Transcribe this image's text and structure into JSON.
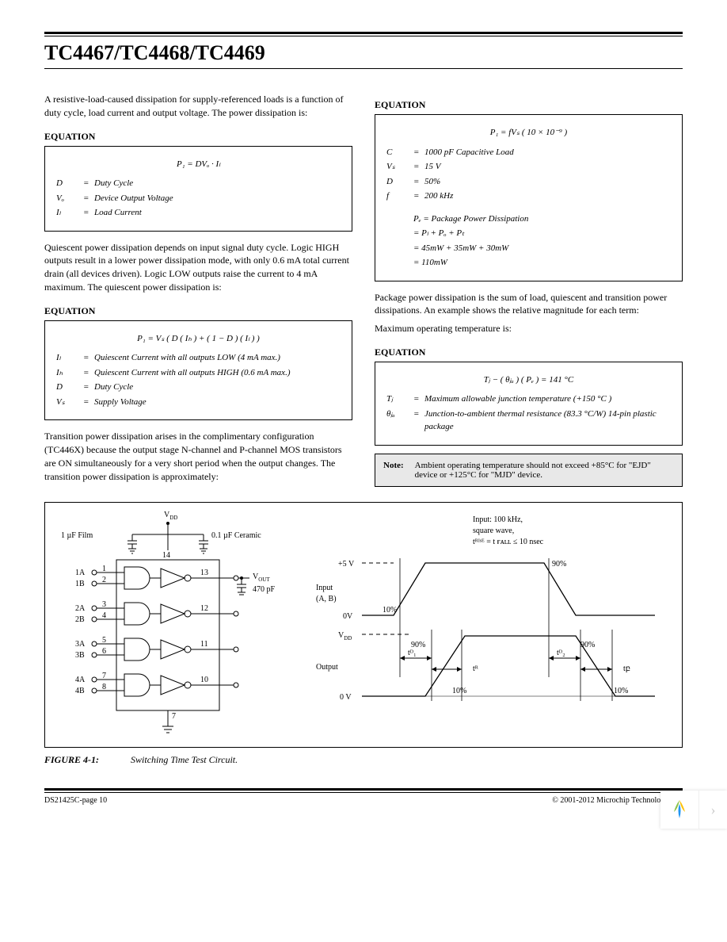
{
  "header": {
    "title": "TC4467/TC4468/TC4469"
  },
  "left": {
    "intro": "A resistive-load-caused dissipation for supply-referenced loads is a function of duty cycle, load current and output voltage. The power dissipation is:",
    "eq1": {
      "label": "EQUATION",
      "formula": "P₁  =  DVₒ · Iₗ",
      "defs": [
        {
          "sym": "D",
          "desc": "Duty Cycle"
        },
        {
          "sym": "Vₒ",
          "desc": "Device Output Voltage"
        },
        {
          "sym": "Iₗ",
          "desc": "Load Current"
        }
      ]
    },
    "para2": "Quiescent power dissipation depends on input signal duty cycle. Logic HIGH outputs result in a lower power dissipation mode, with only 0.6 mA total current drain (all devices driven). Logic LOW outputs raise the current to 4 mA maximum. The quiescent power dissipation is:",
    "eq2": {
      "label": "EQUATION",
      "formula": "P₁  =  Vₛ ( D ( Iₕ ) + ( 1 − D ) ( Iₗ ) )",
      "defs": [
        {
          "sym": "Iₗ",
          "desc": "Quiescent Current with all outputs LOW (4 mA max.)"
        },
        {
          "sym": "Iₕ",
          "desc": "Quiescent Current with all outputs HIGH (0.6 mA max.)"
        },
        {
          "sym": "D",
          "desc": "Duty Cycle"
        },
        {
          "sym": "Vₛ",
          "desc": "Supply Voltage"
        }
      ]
    },
    "para3": "Transition power dissipation arises in the complimentary configuration (TC446X) because the output stage N-channel and P-channel MOS transistors are ON simultaneously for a very short period when the output changes. The transition power dissipation is approximately:"
  },
  "right": {
    "eq3": {
      "label": "EQUATION",
      "formula": "P₁  =  fVₛ ( 10 × 10⁻⁹ )",
      "defs": [
        {
          "sym": "C",
          "desc": "1000 pF Capacitive Load"
        },
        {
          "sym": "Vₛ",
          "desc": "15 V"
        },
        {
          "sym": "D",
          "desc": "50%"
        },
        {
          "sym": "f",
          "desc": "200 kHz"
        }
      ],
      "pkg_lines": [
        "Pₑ  =  Package Power Dissipation",
        "=  Pₗ + Pₒ + Pₜ",
        "=  45mW  + 35mW + 30mW",
        "=  110mW"
      ]
    },
    "para1": "Package power dissipation is the sum of load, quiescent and transition power dissipations. An example shows the relative magnitude for each term:",
    "para2": "Maximum operating temperature is:",
    "eq4": {
      "label": "EQUATION",
      "formula": "Tⱼ − ( θⱼₐ ) ( Pₑ )  =  141 °C",
      "defs": [
        {
          "sym": "Tⱼ",
          "desc": "Maximum allowable junction temperature (+150 °C )"
        },
        {
          "sym": "θⱼₐ",
          "desc": "Junction-to-ambient thermal resistance (83.3 °C/W) 14-pin plastic package"
        }
      ]
    },
    "note": {
      "label": "Note:",
      "text": "Ambient operating temperature should not exceed +85°C for \"EJD\" device or +125°C for \"MJD\" device."
    }
  },
  "figure": {
    "caption_num": "FIGURE 4-1:",
    "caption_text": "Switching Time Test Circuit.",
    "circuit": {
      "vdd": "V",
      "vdd_sub": "DD",
      "cap1": "1 µF  Film",
      "cap2": "0.1 µF Ceramic",
      "pin14": "14",
      "pin7": "7",
      "inputs": [
        {
          "a": "1A",
          "b": "1B",
          "pa": "1",
          "pb": "2",
          "po": "13"
        },
        {
          "a": "2A",
          "b": "2B",
          "pa": "3",
          "pb": "4",
          "po": "12"
        },
        {
          "a": "3A",
          "b": "3B",
          "pa": "5",
          "pb": "6",
          "po": "11"
        },
        {
          "a": "4A",
          "b": "4B",
          "pa": "7",
          "pb": "8",
          "po": "10"
        }
      ],
      "vout": "V",
      "vout_sub": "OUT",
      "cout": "470 pF"
    },
    "timing": {
      "heading1": "Input: 100 kHz,",
      "heading2": "square wave,",
      "heading3": "tᴿᴵˢᴱ = t ғᴀʟʟ ≤ 10 nsec",
      "v5": "+5 V",
      "v0a": "0V",
      "v0b": "0 V",
      "vdd": "V",
      "vdd_sub": "DD",
      "input_label": "Input",
      "input_sub": "(A, B)",
      "output_label": "Output",
      "pct10": "10%",
      "pct90": "90%",
      "tD1": "tᴰ₁",
      "tR": "tᴿ",
      "tD2": "tᴰ₂",
      "tF": "tբ"
    }
  },
  "footer": {
    "left": "DS21425C-page 10",
    "right": "© 2001-2012 Microchip Technology Inc."
  }
}
